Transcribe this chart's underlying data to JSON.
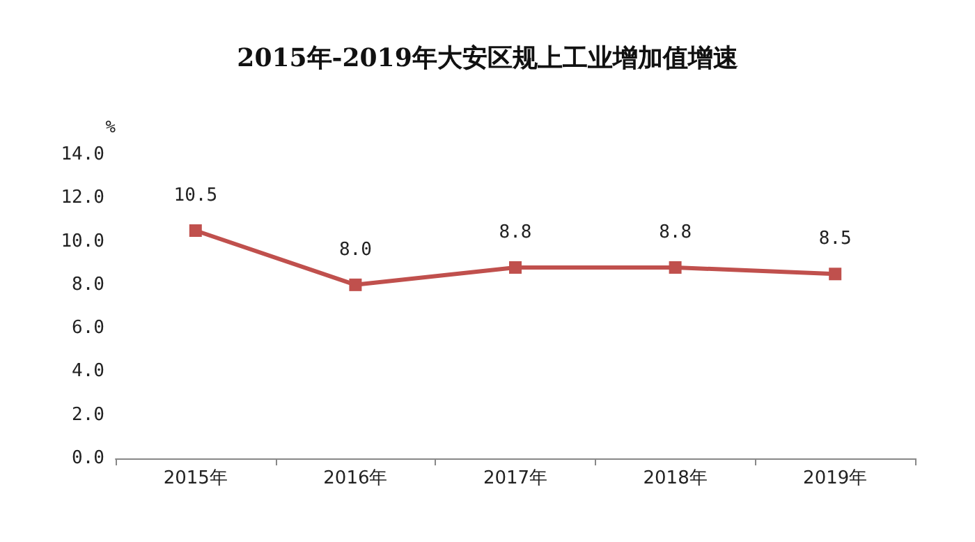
{
  "chart_data": {
    "type": "line",
    "title": "2015年-2019年大安区规上工业增加值增速",
    "ylabel": "%",
    "categories": [
      "2015年",
      "2016年",
      "2017年",
      "2018年",
      "2019年"
    ],
    "series": [
      {
        "color": "#c0504d",
        "values": [
          10.5,
          8.0,
          8.8,
          8.8,
          8.5
        ],
        "value_labels": [
          "10.5",
          "8.0",
          "8.8",
          "8.8",
          "8.5"
        ]
      }
    ],
    "ylim": [
      0,
      14
    ],
    "yticks": [
      {
        "value": 0,
        "label": "0.0"
      },
      {
        "value": 2,
        "label": "2.0"
      },
      {
        "value": 4,
        "label": "4.0"
      },
      {
        "value": 6,
        "label": "6.0"
      },
      {
        "value": 8,
        "label": "8.0"
      },
      {
        "value": 10,
        "label": "10.0"
      },
      {
        "value": 12,
        "label": "12.0"
      },
      {
        "value": 14,
        "label": "14.0"
      }
    ],
    "marker": "square",
    "line_style": "solid"
  }
}
